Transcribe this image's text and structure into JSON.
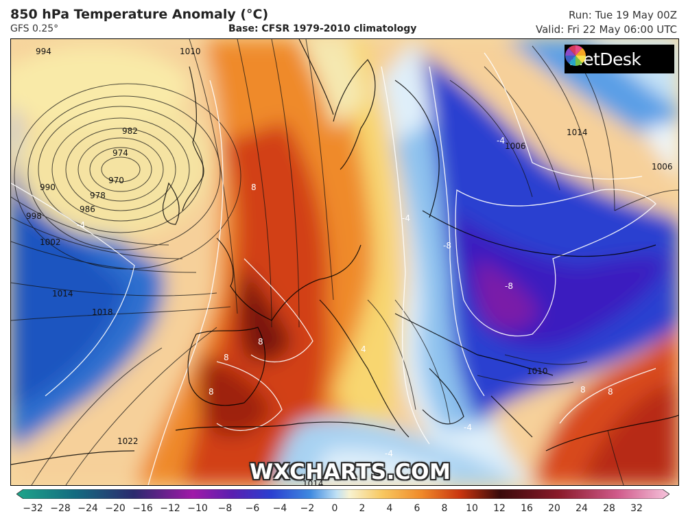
{
  "header": {
    "title": "850 hPa Temperature Anomaly (°C)",
    "model": "GFS 0.25°",
    "base": "Base: CFSR 1979-2010 climatology",
    "run": "Run: Tue 19 May 00Z",
    "valid": "Valid: Fri 22 May 06:00 UTC"
  },
  "branding": {
    "logo_icon": "metdesk-pinwheel-icon",
    "logo_text": "MetDesk",
    "watermark": "WXCHARTS.COM"
  },
  "map": {
    "pressure_labels": [
      "994",
      "1010",
      "1006",
      "982",
      "974",
      "970",
      "978",
      "990",
      "986",
      "998",
      "1002",
      "1014",
      "1018",
      "1022",
      "1014",
      "1006",
      "1010",
      "1014"
    ],
    "anomaly_labels": [
      "-4",
      "-4",
      "-8",
      "-4",
      "-4",
      "-4",
      "8",
      "8",
      "8",
      "8",
      "8",
      "8",
      "4",
      "-8"
    ]
  },
  "colorbar": {
    "ticks": [
      "−32",
      "−28",
      "−24",
      "−20",
      "−16",
      "−12",
      "−10",
      "−8",
      "−6",
      "−4",
      "−2",
      "0",
      "2",
      "4",
      "6",
      "8",
      "10",
      "12",
      "16",
      "20",
      "24",
      "28",
      "32"
    ],
    "colors": [
      "#1fa58a",
      "#146b80",
      "#2b2a6e",
      "#4b1f7a",
      "#7a1f8f",
      "#a01aa8",
      "#5a1fb0",
      "#3a2fc8",
      "#2a5ad8",
      "#3f8ae0",
      "#7dbdf0",
      "#e6f3fb",
      "#fbe9b0",
      "#f8c860",
      "#f59a2a",
      "#e2551a",
      "#b82a10",
      "#7a1408",
      "#3a0a0a",
      "#8a1a2a",
      "#c2406a",
      "#e889b0",
      "#f6c4dc"
    ]
  }
}
